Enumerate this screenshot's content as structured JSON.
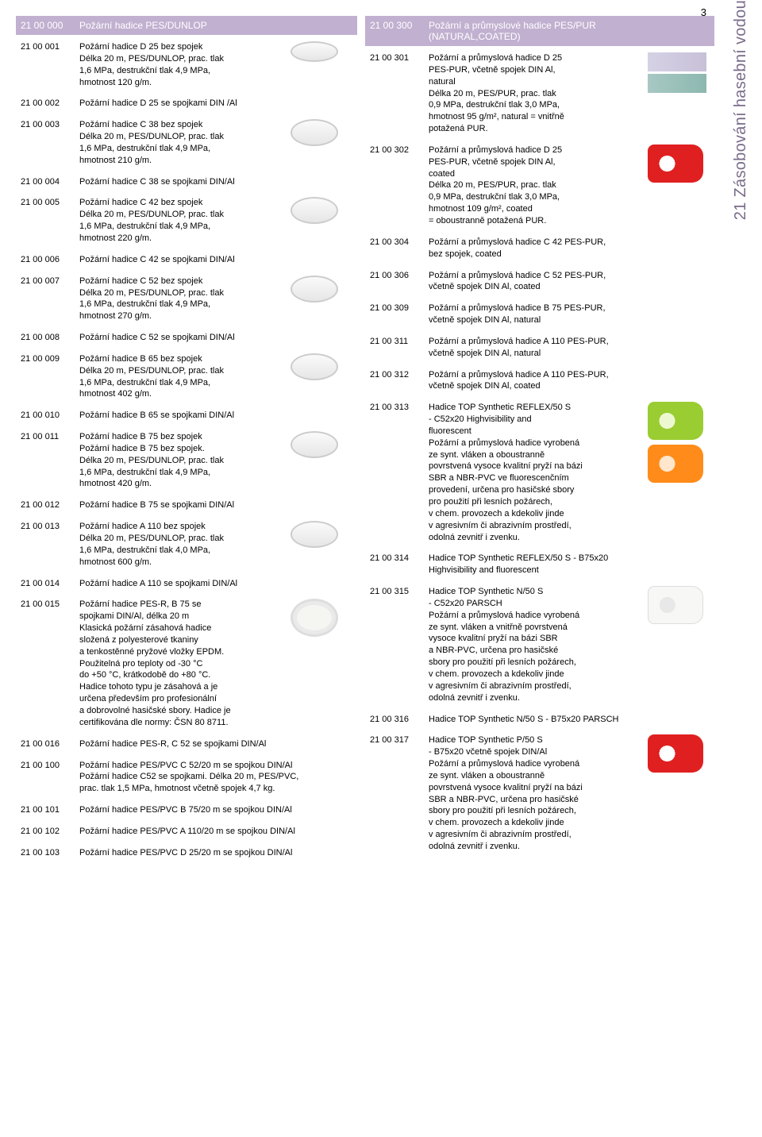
{
  "page_number": "3",
  "side_tab": "21 Zásobování hasební vodou",
  "colors": {
    "header_bg": "#c1b0d0",
    "header_text": "#ffffff",
    "body_text": "#000000",
    "side_tab_text": "#7a6b8a"
  },
  "left": {
    "header": {
      "code": "21 00 000",
      "title": "Požární hadice PES/DUNLOP"
    },
    "items": [
      {
        "code": "21 00 001",
        "desc": "Požární hadice D 25 bez spojek\nDélka 20 m, PES/DUNLOP, prac. tlak\n1,6 MPa, destrukční tlak 4,9 MPa,\nhmotnost 120 g/m.",
        "img": "oval-white thin"
      },
      {
        "code": "21 00 002",
        "desc": "Požární hadice D 25 se spojkami DIN /Al",
        "img": null
      },
      {
        "code": "21 00 003",
        "desc": "Požární hadice C 38 bez spojek\nDélka 20 m, PES/DUNLOP, prac. tlak\n1,6 MPa, destrukční tlak 4,9 MPa,\nhmotnost 210 g/m.",
        "img": "oval-white"
      },
      {
        "code": "21 00 004",
        "desc": "Požární hadice C 38 se spojkami DIN/Al",
        "img": null
      },
      {
        "code": "21 00 005",
        "desc": "Požární hadice C 42 bez spojek\nDélka 20 m, PES/DUNLOP, prac. tlak\n1,6 MPa, destrukční tlak 4,9 MPa,\nhmotnost 220 g/m.",
        "img": "oval-white"
      },
      {
        "code": "21 00 006",
        "desc": "Požární hadice C 42 se spojkami DIN/Al",
        "img": null
      },
      {
        "code": "21 00 007",
        "desc": "Požární hadice C 52 bez spojek\nDélka 20 m, PES/DUNLOP, prac. tlak\n1,6 MPa, destrukční tlak 4,9 MPa,\nhmotnost 270 g/m.",
        "img": "oval-white"
      },
      {
        "code": "21 00 008",
        "desc": "Požární hadice C 52 se spojkami DIN/Al",
        "img": null
      },
      {
        "code": "21 00 009",
        "desc": "Požární hadice B 65 bez spojek\nDélka 20 m, PES/DUNLOP, prac. tlak\n1,6 MPa, destrukční tlak 4,9 MPa,\nhmotnost 402 g/m.",
        "img": "oval-white"
      },
      {
        "code": "21 00 010",
        "desc": "Požární hadice B 65 se spojkami DIN/Al",
        "img": null
      },
      {
        "code": "21 00 011",
        "desc": "Požární hadice B 75 bez spojek\nPožární hadice B 75 bez spojek.\nDélka 20 m, PES/DUNLOP, prac. tlak\n1,6 MPa, destrukční tlak 4,9 MPa,\nhmotnost 420 g/m.",
        "img": "oval-white"
      },
      {
        "code": "21 00 012",
        "desc": "Požární hadice B 75 se spojkami DIN/Al",
        "img": null
      },
      {
        "code": "21 00 013",
        "desc": "Požární hadice A 110 bez spojek\nDélka 20 m, PES/DUNLOP, prac. tlak\n1,6 MPa, destrukční tlak 4,0 MPa,\nhmotnost 600 g/m.",
        "img": "oval-white"
      },
      {
        "code": "21 00 014",
        "desc": "Požární hadice A 110 se spojkami DIN/Al",
        "img": null
      },
      {
        "code": "21 00 015",
        "desc": "Požární hadice PES-R, B 75 se\nspojkami DIN/Al, délka 20 m\nKlasická požární zásahová hadice\nsložená z polyesterové tkaniny\na tenkostěnné pryžové vložky EPDM.\nPoužitelná pro teploty od -30 °C\ndo +50 °C, krátkodobě do +80 °C.\nHadice tohoto typu je zásahová a je\nurčena především pro profesionální\na dobrovolné hasičské sbory. Hadice je\ncertifikována dle normy: ČSN 80 8711.",
        "img": "coil"
      },
      {
        "code": "21 00 016",
        "desc": "Požární hadice PES-R, C 52 se spojkami DIN/Al",
        "img": null
      },
      {
        "code": "21 00 100",
        "desc": "Požární hadice PES/PVC C 52/20 m se spojkou DIN/Al\nPožární hadice C52 se spojkami. Délka 20 m, PES/PVC,\nprac. tlak 1,5 MPa, hmotnost včetně spojek 4,7 kg.",
        "img": null
      },
      {
        "code": "21 00 101",
        "desc": "Požární hadice PES/PVC B 75/20 m se spojkou DIN/Al",
        "img": null
      },
      {
        "code": "21 00 102",
        "desc": "Požární hadice PES/PVC A 110/20 m se spojkou DIN/Al",
        "img": null
      },
      {
        "code": "21 00 103",
        "desc": "Požární hadice PES/PVC D 25/20 m se spojkou DIN/Al",
        "img": null
      }
    ]
  },
  "right": {
    "header": {
      "code": "21 00 300",
      "title": "Požární a průmyslové hadice PES/PUR\n(NATURAL,COATED)"
    },
    "items": [
      {
        "code": "21 00 301",
        "desc": "Požární a průmyslová hadice D 25\nPES-PUR, včetně spojek DIN Al,\nnatural\nDélka 20 m, PES/PUR, prac. tlak\n0,9 MPa, destrukční tlak 3,0 MPa,\nhmotnost 95 g/m², natural = vnitřně\npotažená PUR.",
        "img": "swatches"
      },
      {
        "code": "21 00 302",
        "desc": "Požární a průmyslová hadice D 25\nPES-PUR, včetně spojek DIN Al,\ncoated\nDélka 20 m, PES/PUR, prac. tlak\n0,9 MPa, destrukční tlak 3,0 MPa,\nhmotnost 109 g/m², coated\n= oboustranně potažená PUR.",
        "img": "roll-red"
      },
      {
        "code": "21 00 304",
        "desc": "Požární a průmyslová hadice C 42 PES-PUR,\nbez spojek, coated",
        "img": null
      },
      {
        "code": "21 00 306",
        "desc": "Požární a průmyslová hadice C 52 PES-PUR,\nvčetně spojek DIN Al, coated",
        "img": null
      },
      {
        "code": "21 00 309",
        "desc": "Požární a průmyslová hadice B 75 PES-PUR,\nvčetně spojek DIN Al, natural",
        "img": null
      },
      {
        "code": "21 00 311",
        "desc": "Požární a průmyslová hadice A 110 PES-PUR,\nvčetně spojek DIN Al, natural",
        "img": null
      },
      {
        "code": "21 00 312",
        "desc": "Požární a průmyslová hadice A 110 PES-PUR,\nvčetně spojek DIN Al, coated",
        "img": null
      },
      {
        "code": "21 00 313",
        "desc": "Hadice TOP Synthetic REFLEX/50 S\n- C52x20 Highvisibility and\nfluorescent\nPožární a průmyslová hadice vyrobená\nze synt. vláken a oboustranně\npovrstvená vysoce kvalitní pryží na bázi\nSBR a NBR-PVC ve fluorescenčním\nprovedení, určena pro hasičské sbory\npro použití při lesních požárech,\nv chem. provozech a kdekoliv jinde\nv agresivním či abrazivním prostředí,\nodolná zevnitř i zvenku.",
        "img": "green-orange"
      },
      {
        "code": "21 00 314",
        "desc": "Hadice TOP Synthetic REFLEX/50 S - B75x20\nHighvisibility and fluorescent",
        "img": null
      },
      {
        "code": "21 00 315",
        "desc": "Hadice TOP Synthetic N/50 S\n- C52x20 PARSCH\nPožární a průmyslová hadice vyrobená\nze synt. vláken a vnitřně povrstvená\nvysoce kvalitní pryží na bázi SBR\na NBR-PVC, určena pro hasičské\nsbory pro použití při lesních požárech,\nv chem. provozech a kdekoliv jinde\nv agresivním či abrazivním prostředí,\nodolná zevnitř i zvenku.",
        "img": "roll-white"
      },
      {
        "code": "21 00 316",
        "desc": "Hadice TOP Synthetic N/50 S - B75x20 PARSCH",
        "img": null
      },
      {
        "code": "21 00 317",
        "desc": "Hadice TOP Synthetic P/50 S\n- B75x20 včetně spojek DIN/Al\nPožární a průmyslová hadice vyrobená\nze synt. vláken a oboustranně\npovrstvená vysoce kvalitní pryží na bázi\nSBR a NBR-PVC, určena pro hasičské\nsbory pro použití při lesních požárech,\nv chem. provozech a kdekoliv jinde\nv agresivním či abrazivním prostředí,\nodolná zevnitř i zvenku.",
        "img": "roll-red"
      }
    ]
  }
}
